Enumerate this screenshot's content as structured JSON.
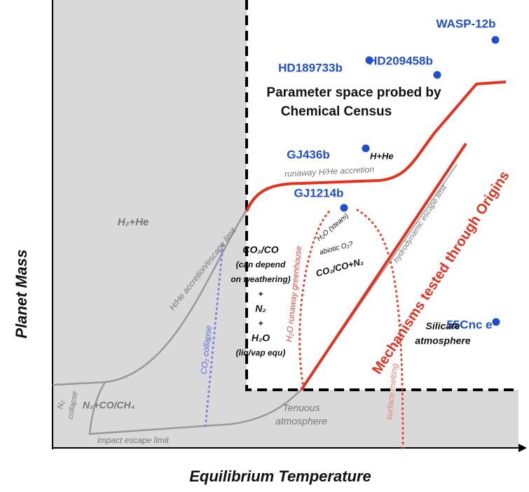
{
  "axes": {
    "y_label": "Planet Mass",
    "x_label": "Equilibrium Temperature"
  },
  "planets": [
    {
      "label": "WASP-12b"
    },
    {
      "label": "HD189733b"
    },
    {
      "label": "HD209458b"
    },
    {
      "label": "GJ436b"
    },
    {
      "label": "GJ1214b"
    },
    {
      "label": "55Cnc e"
    }
  ],
  "regions": {
    "census": [
      "Parameter space probed by",
      "Chemical Census"
    ],
    "origins": "Mechanisms tested through Origins",
    "hhe": "H₂+He",
    "hhe_gj436": "H+He",
    "runaway_accretion": "runaway H/He accretion",
    "accretion_limit": "H/He accretion/escape limit",
    "co2_block": [
      "CO₂/CO",
      "(can depend",
      "on weathering)",
      "+",
      "N₂",
      "+",
      "H₂O",
      "(liq/vap equ)"
    ],
    "co2_collapse": "CO₂ collapse",
    "n2_co": "N₂+CO/CH₄",
    "n2_collapse": [
      "N₂",
      "collapse"
    ],
    "impact": "impact escape limit",
    "tenuous": [
      "Tenuous",
      "atmosphere"
    ],
    "greenhouse": "H₂O runaway greenhouse",
    "steam": "H₂O (steam)",
    "abiotic": "abiotic O₂?",
    "co2_n2": "CO₂/CO+N₂",
    "hydro": "hydrodynamic escape limit",
    "melting": "surface melting",
    "silicate": [
      "Silicate",
      "atmosphere"
    ]
  }
}
